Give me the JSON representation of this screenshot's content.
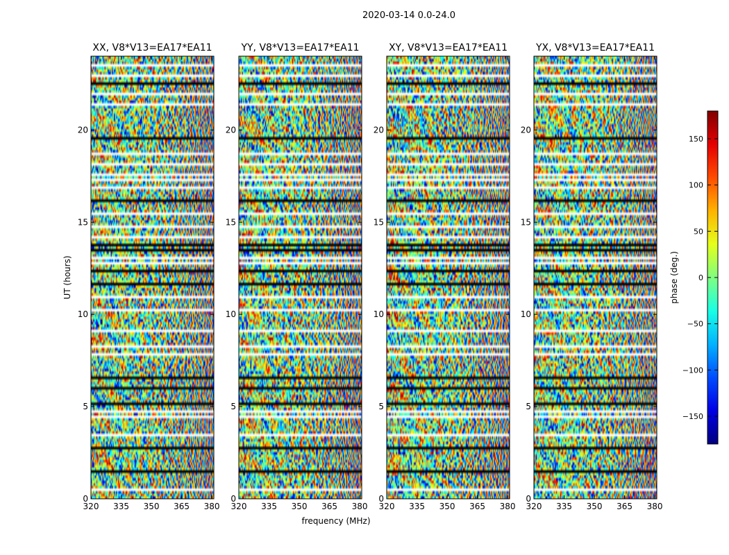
{
  "figure_title": "2020-03-14 0.0-24.0",
  "chart_data": {
    "type": "heatmap",
    "title": "2020-03-14 0.0-24.0",
    "xlabel": "frequency (MHz)",
    "ylabel": "UT (hours)",
    "xlim": [
      320,
      381
    ],
    "ylim": [
      0,
      24
    ],
    "xticks": [
      320,
      335,
      350,
      365,
      380
    ],
    "yticks": [
      0,
      5,
      10,
      15,
      20
    ],
    "panels": [
      {
        "title": "XX, V8*V13=EA17*EA11",
        "pol": "XX"
      },
      {
        "title": "YY, V8*V13=EA17*EA11",
        "pol": "YY"
      },
      {
        "title": "XY, V8*V13=EA17*EA11",
        "pol": "XY"
      },
      {
        "title": "YX, V8*V13=EA17*EA11",
        "pol": "YX"
      }
    ],
    "colorbar": {
      "label": "phase (deg.)",
      "range": [
        -180,
        180
      ],
      "ticks": [
        -150,
        -100,
        -50,
        0,
        50,
        100,
        150
      ],
      "colormap": "jet"
    },
    "flagged_bands_hours": [
      0.5,
      1.5,
      2.7,
      3.4,
      4.4,
      4.7,
      5.1,
      6.0,
      6.6,
      7.9,
      8.3,
      9.1,
      10.3,
      11.0,
      11.7,
      12.3,
      12.8,
      13.1,
      13.5,
      13.8,
      14.2,
      14.8,
      15.4,
      16.2,
      16.9,
      17.3,
      17.6,
      18.2,
      18.7,
      19.5,
      21.4,
      21.6,
      22.0,
      22.5,
      23.0,
      23.5
    ]
  }
}
